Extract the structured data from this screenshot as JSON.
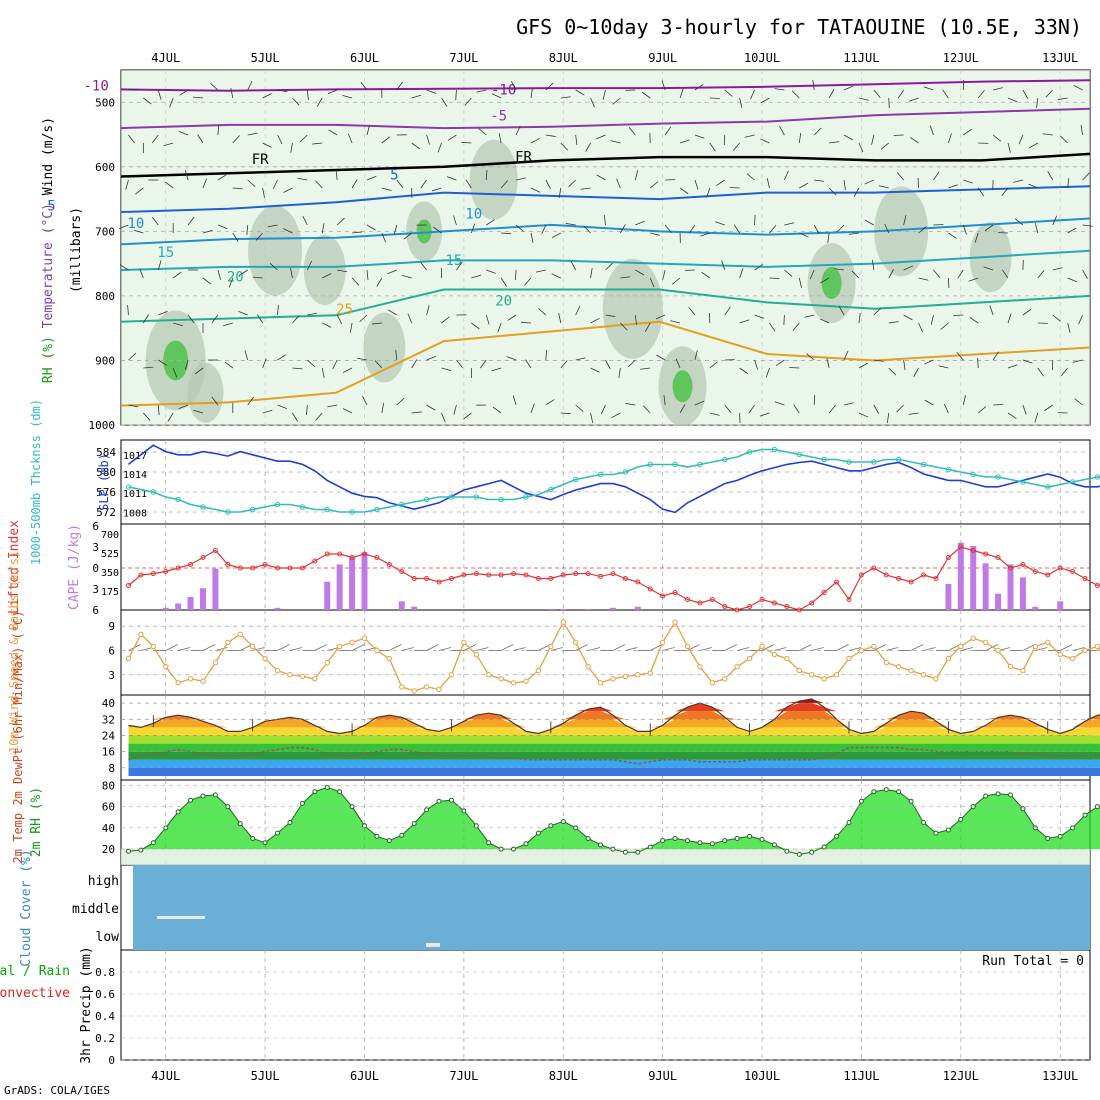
{
  "title": "GFS 0~10day 3-hourly for TATAOUINE (10.5E, 33N)",
  "footer": "GrADS: COLA/IGES",
  "colors": {
    "frame": "#000000",
    "grid": "#aaaaaa",
    "rh_fill": "#dbeed8",
    "rh_fill_mid": "#b5c7b2",
    "rh_fill_high": "#44c244",
    "slp": "#1f3fd0",
    "thickness": "#33bbbb",
    "cape": "#c07ae8",
    "lifted": "#e23535",
    "wind": "#e8a040",
    "barb": "#7a6a5a",
    "dewpt": "#8a5a5a",
    "rh2m_fill": "#22dd22",
    "cloud": "#6baed6",
    "precip": "#00aa00"
  },
  "chart_data": [
    {
      "id": "upper_air",
      "type": "contour",
      "ylabel_parts": [
        {
          "text": "RH (%)",
          "color": "#1a9a1a"
        },
        {
          "text": "Temperature (°C)",
          "color": "#7a3fb0"
        },
        {
          "text": "Wind (m/s)",
          "color": "#000000"
        }
      ],
      "yunit": "(millibars)",
      "ylim": [
        1000,
        450
      ],
      "yticks": [
        500,
        600,
        700,
        800,
        900,
        1000
      ],
      "x_days": [
        "4JUL",
        "5JUL",
        "6JUL",
        "7JUL",
        "8JUL",
        "9JUL",
        "10JUL",
        "11JUL",
        "12JUL",
        "13JUL"
      ],
      "isotherms": [
        {
          "label": "-10",
          "color": "#8b1a9b",
          "levels": [
            480,
            482,
            480,
            479,
            478,
            478,
            476,
            472,
            468,
            466
          ]
        },
        {
          "label": "-5",
          "color": "#8b3aab",
          "levels": [
            540,
            535,
            535,
            540,
            538,
            533,
            530,
            520,
            515,
            510
          ]
        },
        {
          "label": "FR",
          "color": "#000000",
          "levels": [
            615,
            610,
            605,
            600,
            590,
            585,
            585,
            590,
            590,
            580
          ]
        },
        {
          "label": "5",
          "color": "#1f5fd0",
          "levels": [
            670,
            665,
            655,
            640,
            645,
            650,
            640,
            640,
            635,
            630
          ]
        },
        {
          "label": "10",
          "color": "#1f8fd0",
          "levels": [
            720,
            712,
            710,
            700,
            690,
            700,
            705,
            700,
            690,
            680
          ]
        },
        {
          "label": "15",
          "color": "#22a8b8",
          "levels": [
            760,
            755,
            755,
            745,
            745,
            750,
            755,
            750,
            740,
            730
          ]
        },
        {
          "label": "20",
          "color": "#20b090",
          "levels": [
            840,
            835,
            830,
            790,
            790,
            790,
            810,
            820,
            810,
            800
          ]
        },
        {
          "label": "25",
          "color": "#e0a020",
          "levels": [
            970,
            965,
            950,
            870,
            855,
            840,
            890,
            900,
            890,
            880
          ]
        }
      ],
      "contour_labels": [
        {
          "text": "-10",
          "day": 3.3,
          "p": 482,
          "color": "#8b1a9b"
        },
        {
          "text": "-10",
          "day": 7.4,
          "p": 488,
          "color": "#8b1a9b"
        },
        {
          "text": "-5",
          "day": 1.6,
          "p": 536,
          "color": "#8b3aab"
        },
        {
          "text": "-5",
          "day": 7.35,
          "p": 528,
          "color": "#8b3aab"
        },
        {
          "text": "FR",
          "day": 1.6,
          "p": 617,
          "color": "#000000"
        },
        {
          "text": "FR",
          "day": 4.95,
          "p": 596,
          "color": "#000000"
        },
        {
          "text": "FR",
          "day": 7.6,
          "p": 592,
          "color": "#000000"
        },
        {
          "text": "5",
          "day": 2.85,
          "p": 668,
          "color": "#1f5fd0"
        },
        {
          "text": "5",
          "day": 6.3,
          "p": 620,
          "color": "#1f5fd0"
        },
        {
          "text": "10",
          "day": 3.7,
          "p": 695,
          "color": "#1f8fd0"
        },
        {
          "text": "10",
          "day": 7.1,
          "p": 680,
          "color": "#1f8fd0"
        },
        {
          "text": "15",
          "day": 4.0,
          "p": 740,
          "color": "#22a8b8"
        },
        {
          "text": "15",
          "day": 6.9,
          "p": 752,
          "color": "#22a8b8"
        },
        {
          "text": "20",
          "day": 4.7,
          "p": 778,
          "color": "#20b090"
        },
        {
          "text": "20",
          "day": 7.4,
          "p": 815,
          "color": "#20b090"
        },
        {
          "text": "25",
          "day": 5.8,
          "p": 828,
          "color": "#e0a020"
        }
      ]
    },
    {
      "id": "slp_thickness",
      "type": "line",
      "ylabel_left": "1000-500mb Thcknss (dm)",
      "ylabel_right": "SLP (mb)",
      "left_ticks": [
        572,
        576,
        580,
        584
      ],
      "right_ticks": [
        1008,
        1011,
        1014,
        1017
      ],
      "series": [
        {
          "name": "SLP",
          "axis": "right",
          "color": "#1f3fd0",
          "values": [
            1015.5,
            1017.0,
            1018.5,
            1017.5,
            1017.0,
            1017.0,
            1017.5,
            1017.2,
            1016.8,
            1017.5,
            1017.0,
            1016.5,
            1016.0,
            1016.0,
            1015.5,
            1014.5,
            1013.0,
            1012.0,
            1011.0,
            1010.5,
            1010.3,
            1009.5,
            1009.0,
            1008.5,
            1009.0,
            1009.5,
            1010.5,
            1011.5,
            1012.0,
            1012.5,
            1013.0,
            1012.0,
            1011.0,
            1010.5,
            1010.0,
            1010.8,
            1011.5,
            1012.0,
            1012.5,
            1012.5,
            1012.0,
            1011.0,
            1010.0,
            1008.5,
            1008.0,
            1009.5,
            1010.5,
            1011.5,
            1012.5,
            1013.0,
            1013.8,
            1014.5,
            1015.0,
            1015.5,
            1015.8,
            1016.0,
            1015.5,
            1015.0,
            1014.5,
            1014.5,
            1015.0,
            1015.5,
            1015.8,
            1015.0,
            1014.0,
            1013.5,
            1013.0,
            1013.0,
            1012.5,
            1012.0,
            1012.0,
            1012.5,
            1013.0,
            1013.5,
            1014.0,
            1013.5,
            1012.5,
            1012.0,
            1012.0,
            1012.5,
            1013.0,
            1013.5,
            1013.0,
            1012.5,
            1012.0,
            1012.0,
            1012.5,
            1013.0,
            1013.5,
            1014.0,
            1014.5
          ]
        },
        {
          "name": "1000-500mb Thickness",
          "axis": "left",
          "color": "#33bbbb",
          "values": [
            577.0,
            576.5,
            576.0,
            575.0,
            574.5,
            573.5,
            573.0,
            572.5,
            572.0,
            572.0,
            572.5,
            573.0,
            573.5,
            573.5,
            573.0,
            572.5,
            572.5,
            572.0,
            572.0,
            572.0,
            572.5,
            573.0,
            573.5,
            574.0,
            574.5,
            575.0,
            575.0,
            575.0,
            575.0,
            574.5,
            574.5,
            574.5,
            575.0,
            575.5,
            576.5,
            577.5,
            578.5,
            579.0,
            579.5,
            579.5,
            580.0,
            581.0,
            581.5,
            581.5,
            581.5,
            581.0,
            581.5,
            582.0,
            582.5,
            583.0,
            584.0,
            584.5,
            584.5,
            584.0,
            583.5,
            583.0,
            582.5,
            582.5,
            582.0,
            582.0,
            582.0,
            582.5,
            582.5,
            582.0,
            581.5,
            581.0,
            580.5,
            580.0,
            579.5,
            579.0,
            579.0,
            578.5,
            578.0,
            577.5,
            577.0,
            577.5,
            578.0,
            578.5,
            579.0,
            579.0,
            579.5,
            579.5,
            579.5,
            579.5,
            580.0,
            580.5,
            581.0,
            581.5,
            581.0,
            580.5,
            580.5
          ]
        }
      ]
    },
    {
      "id": "cape_li",
      "type": "bar+line",
      "ylabel_left": "Lifted Index",
      "ylabel_right": "CAPE (J/kg)",
      "li_ticks": [
        -6,
        -3,
        0,
        3,
        6
      ],
      "li_tick_labels": [
        "6",
        "3",
        "0",
        "3",
        "6"
      ],
      "cape_ticks": [
        175,
        350,
        525,
        700
      ],
      "cape": [
        0,
        0,
        0,
        20,
        60,
        120,
        200,
        380,
        0,
        0,
        0,
        0,
        20,
        0,
        0,
        0,
        260,
        420,
        480,
        530,
        0,
        0,
        80,
        30,
        0,
        0,
        0,
        0,
        0,
        0,
        0,
        0,
        0,
        0,
        10,
        10,
        0,
        10,
        0,
        20,
        0,
        30,
        0,
        0,
        0,
        0,
        0,
        0,
        0,
        0,
        0,
        0,
        0,
        0,
        0,
        0,
        0,
        0,
        0,
        0,
        0,
        0,
        0,
        0,
        0,
        0,
        240,
        620,
        590,
        430,
        150,
        420,
        300,
        30,
        0,
        80,
        0,
        0,
        0,
        0,
        0,
        40,
        0,
        0,
        0,
        0,
        0,
        0,
        0,
        0,
        0
      ],
      "lifted_index": [
        2.5,
        1.0,
        0.8,
        0.5,
        0.0,
        -0.5,
        -1.5,
        -2.5,
        -0.5,
        0.0,
        0.0,
        -0.5,
        0.0,
        0.0,
        0.0,
        -1.0,
        -2.0,
        -2.0,
        -1.5,
        -2.0,
        -1.5,
        -0.5,
        0.5,
        1.5,
        1.5,
        2.0,
        1.5,
        1.0,
        0.8,
        1.0,
        1.0,
        0.8,
        1.0,
        1.5,
        1.5,
        1.0,
        0.8,
        0.8,
        1.2,
        0.8,
        1.5,
        2.0,
        3.0,
        4.0,
        3.5,
        4.5,
        5.0,
        4.5,
        5.5,
        6.0,
        5.5,
        4.5,
        5.0,
        5.5,
        6.0,
        5.0,
        3.5,
        2.0,
        4.5,
        1.0,
        0.0,
        1.0,
        1.5,
        2.0,
        1.0,
        1.5,
        -1.5,
        -3.0,
        -2.5,
        -2.0,
        -1.5,
        0.0,
        -0.5,
        0.5,
        1.0,
        0.0,
        0.5,
        1.5,
        2.5,
        2.0,
        0.0,
        1.0,
        2.0,
        2.5,
        2.0,
        1.5,
        2.0,
        2.5,
        3.5,
        5.0,
        5.5
      ]
    },
    {
      "id": "wind10m",
      "type": "line",
      "ylabel": "10m Wind Speed & Barbs (m/s)",
      "yticks": [
        3,
        6,
        9
      ],
      "values": [
        5.0,
        8.0,
        6.5,
        4.0,
        2.0,
        2.5,
        2.2,
        4.5,
        7.0,
        8.0,
        6.5,
        5.0,
        3.5,
        3.0,
        2.8,
        2.5,
        4.5,
        6.5,
        7.0,
        7.5,
        6.0,
        5.0,
        1.5,
        1.0,
        1.5,
        1.2,
        3.0,
        7.0,
        5.5,
        3.0,
        2.5,
        2.0,
        2.2,
        3.5,
        6.5,
        9.5,
        7.0,
        4.0,
        2.0,
        2.5,
        2.8,
        3.0,
        3.2,
        7.0,
        9.5,
        6.5,
        4.0,
        2.0,
        2.5,
        4.0,
        5.0,
        6.5,
        5.5,
        5.0,
        3.5,
        3.0,
        2.5,
        3.0,
        5.0,
        6.0,
        6.5,
        4.5,
        4.0,
        3.5,
        3.0,
        2.5,
        5.0,
        6.5,
        7.5,
        7.0,
        6.0,
        4.0,
        3.5,
        6.5,
        7.0,
        5.5,
        5.0,
        6.0,
        6.5,
        4.0,
        1.5,
        1.0,
        1.2,
        1.5,
        1.8,
        2.0,
        2.5,
        3.0,
        2.5,
        2.0,
        1.5
      ]
    },
    {
      "id": "temp2m",
      "type": "area+line",
      "ylabel": "2m Temp 2m DewPt (6hr Min/Max) (°C)",
      "yticks": [
        8,
        16,
        24,
        32,
        40
      ],
      "band_colors": [
        "#3a78e0",
        "#38a6f0",
        "#2a9a3a",
        "#36c236",
        "#a0e030",
        "#f7d830",
        "#f5a623",
        "#f07820",
        "#e04020",
        "#b01010"
      ],
      "temperature": [
        29,
        28,
        30,
        33,
        34,
        33,
        31,
        29,
        26,
        26,
        28,
        31,
        32,
        33,
        32,
        29,
        26,
        25,
        26,
        29,
        33,
        34,
        33,
        30,
        27,
        26,
        28,
        31,
        34,
        35,
        34,
        30,
        26,
        25,
        27,
        30,
        34,
        37,
        38,
        34,
        29,
        26,
        26,
        29,
        34,
        38,
        40,
        38,
        33,
        28,
        26,
        28,
        32,
        38,
        41,
        42,
        38,
        32,
        27,
        25,
        26,
        30,
        34,
        36,
        35,
        31,
        27,
        25,
        26,
        29,
        33,
        34,
        33,
        30,
        27,
        25,
        27,
        31,
        34,
        35,
        33,
        29,
        26,
        25,
        27,
        31,
        35,
        38,
        36,
        30,
        27
      ],
      "dewpoint": [
        12,
        14,
        15,
        16,
        17,
        16,
        15,
        14,
        14,
        14,
        15,
        16,
        17,
        18,
        18,
        17,
        15,
        14,
        14,
        15,
        16,
        17,
        17,
        16,
        15,
        14,
        14,
        14,
        14,
        13,
        13,
        13,
        12,
        12,
        12,
        12,
        12,
        12,
        12,
        12,
        11,
        10,
        11,
        12,
        12,
        12,
        11,
        11,
        11,
        11,
        12,
        12,
        12,
        12,
        12,
        12,
        13,
        15,
        18,
        18,
        18,
        18,
        18,
        17,
        17,
        16,
        16,
        16,
        16,
        16,
        16,
        16,
        15,
        15,
        14,
        14,
        14,
        14,
        14,
        13,
        13,
        13,
        13,
        12,
        12,
        12,
        12,
        13,
        13,
        13,
        13
      ]
    },
    {
      "id": "rh2m",
      "type": "area",
      "ylabel": "2m RH (%)",
      "yticks": [
        20,
        40,
        60,
        80
      ],
      "values": [
        18,
        19,
        26,
        40,
        55,
        66,
        70,
        71,
        60,
        44,
        30,
        26,
        35,
        45,
        63,
        74,
        78,
        74,
        60,
        42,
        32,
        28,
        33,
        44,
        57,
        65,
        66,
        56,
        42,
        26,
        20,
        20,
        25,
        35,
        42,
        46,
        40,
        30,
        24,
        20,
        17,
        17,
        22,
        28,
        30,
        28,
        26,
        25,
        28,
        30,
        32,
        29,
        24,
        18,
        15,
        17,
        22,
        32,
        45,
        65,
        74,
        76,
        74,
        65,
        45,
        35,
        38,
        48,
        60,
        70,
        72,
        71,
        58,
        40,
        30,
        32,
        40,
        52,
        60,
        63,
        66,
        55,
        35,
        25,
        28,
        35,
        45,
        49,
        48,
        45,
        40
      ]
    },
    {
      "id": "cloud",
      "type": "area",
      "ylabel": "Cloud Cover (%)",
      "levels": [
        "high",
        "middle",
        "low"
      ]
    },
    {
      "id": "precip",
      "type": "bar",
      "ylabel_parts": [
        {
          "text": "Total / Rain",
          "color": "#00aa00"
        },
        {
          "text": "Convective",
          "color": "#dd2222"
        },
        {
          "text": "3hr Precip (mm)",
          "color": "#000000"
        }
      ],
      "yticks": [
        0,
        0.2,
        0.4,
        0.6,
        0.8
      ],
      "ytick_labels": [
        "0",
        "0.2",
        "0.4",
        "0.6",
        "0.8"
      ],
      "run_total": "Run Total = 0",
      "values": []
    }
  ]
}
